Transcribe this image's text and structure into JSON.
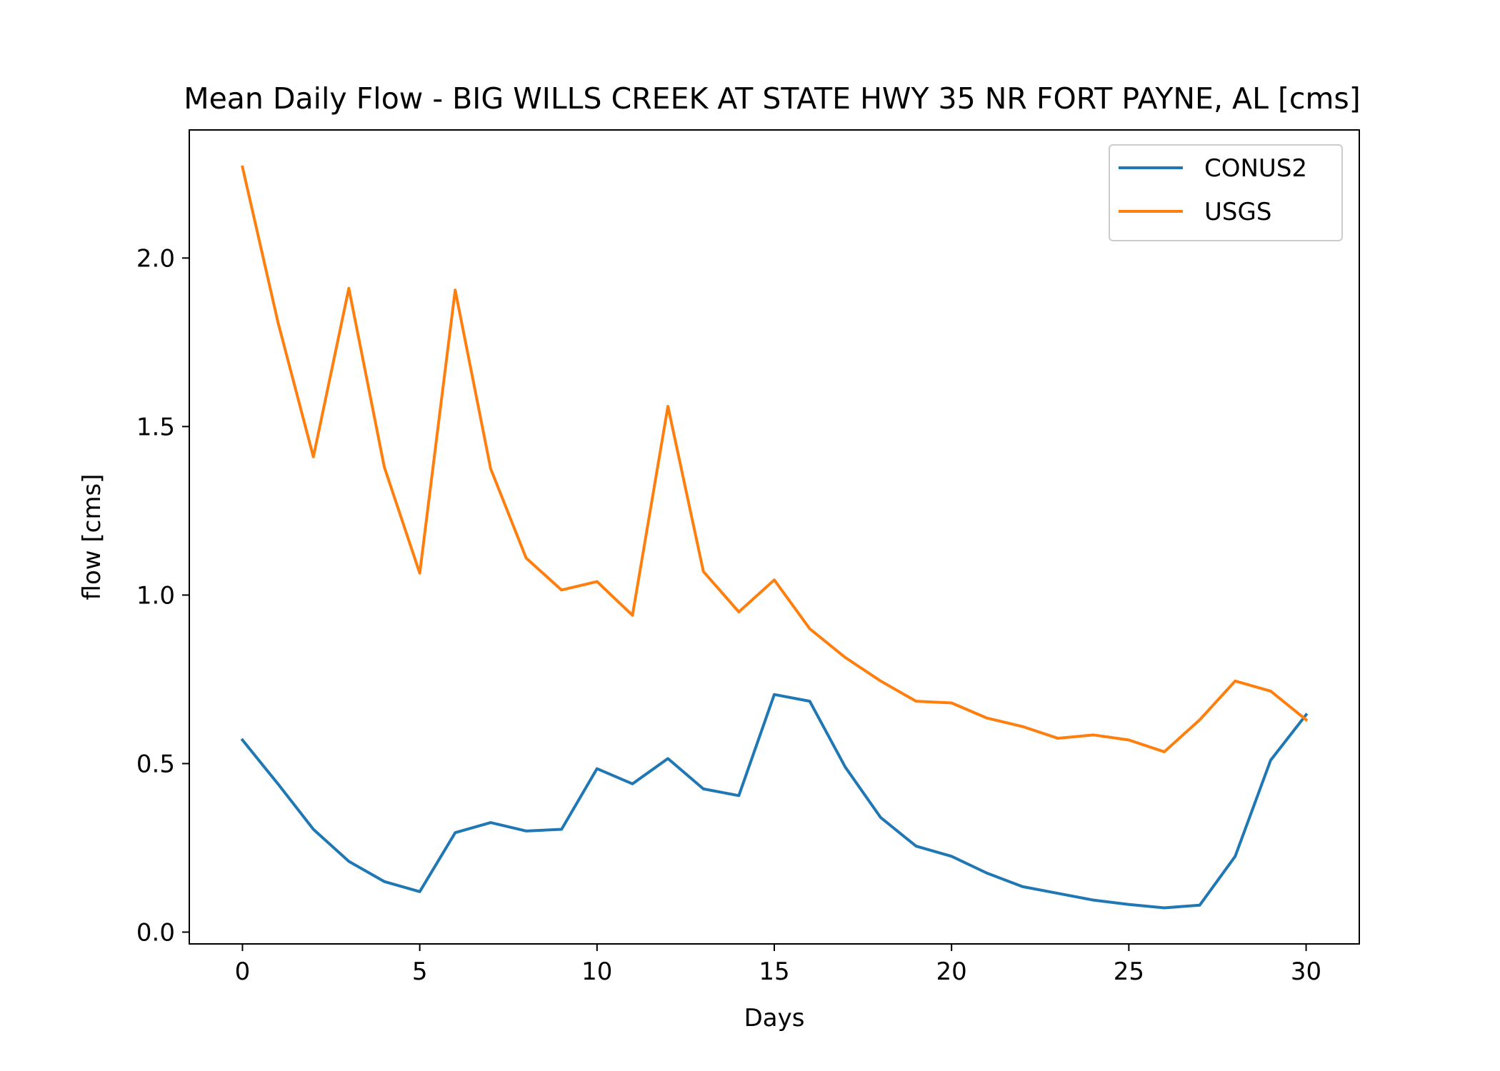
{
  "chart_data": {
    "type": "line",
    "title": "Mean Daily Flow - BIG WILLS CREEK AT STATE HWY 35 NR FORT PAYNE, AL [cms]",
    "xlabel": "Days",
    "ylabel": "flow [cms]",
    "xlim": [
      -1.5,
      31.5
    ],
    "ylim": [
      -0.035,
      2.38
    ],
    "xticks": [
      0,
      5,
      10,
      15,
      20,
      25,
      30
    ],
    "xtick_labels": [
      "0",
      "5",
      "10",
      "15",
      "20",
      "25",
      "30"
    ],
    "yticks": [
      0.0,
      0.5,
      1.0,
      1.5,
      2.0
    ],
    "ytick_labels": [
      "0.0",
      "0.5",
      "1.0",
      "1.5",
      "2.0"
    ],
    "grid": false,
    "legend_position": "top-right",
    "x": [
      0,
      1,
      2,
      3,
      4,
      5,
      6,
      7,
      8,
      9,
      10,
      11,
      12,
      13,
      14,
      15,
      16,
      17,
      18,
      19,
      20,
      21,
      22,
      23,
      24,
      25,
      26,
      27,
      28,
      29,
      30
    ],
    "series": [
      {
        "name": "CONUS2",
        "color": "#1f77b4",
        "values": [
          0.57,
          0.44,
          0.305,
          0.21,
          0.15,
          0.12,
          0.295,
          0.325,
          0.3,
          0.305,
          0.485,
          0.44,
          0.515,
          0.425,
          0.405,
          0.705,
          0.685,
          0.49,
          0.34,
          0.255,
          0.225,
          0.175,
          0.135,
          0.115,
          0.095,
          0.082,
          0.072,
          0.08,
          0.225,
          0.51,
          0.645
        ]
      },
      {
        "name": "USGS",
        "color": "#ff7f0e",
        "values": [
          2.27,
          1.81,
          1.41,
          1.91,
          1.38,
          1.065,
          1.905,
          1.375,
          1.11,
          1.015,
          1.04,
          0.94,
          1.56,
          1.07,
          0.95,
          1.045,
          0.9,
          0.815,
          0.745,
          0.685,
          0.68,
          0.635,
          0.61,
          0.575,
          0.585,
          0.57,
          0.535,
          0.63,
          0.745,
          0.715,
          0.63
        ]
      }
    ]
  }
}
